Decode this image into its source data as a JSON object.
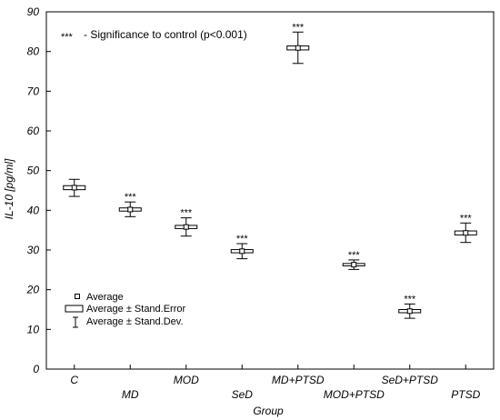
{
  "chart_data": {
    "type": "box",
    "xlabel": "Group",
    "ylabel": "IL-10 [pg/ml]",
    "ylim": [
      0,
      90
    ],
    "yticks": [
      0,
      10,
      20,
      30,
      40,
      50,
      60,
      70,
      80,
      90
    ],
    "grid": false,
    "categories": [
      "C",
      "MD",
      "MOD",
      "SeD",
      "MD+PTSD",
      "MOD+PTSD",
      "SeD+PTSD",
      "PTSD"
    ],
    "mean": [
      45.7,
      40.2,
      35.8,
      29.7,
      80.9,
      26.3,
      14.6,
      34.3
    ],
    "se_low": [
      45.2,
      39.8,
      35.4,
      29.3,
      80.4,
      26.0,
      14.2,
      33.8
    ],
    "se_high": [
      46.2,
      40.6,
      36.2,
      30.1,
      81.4,
      26.6,
      15.0,
      34.8
    ],
    "sd_low": [
      43.5,
      38.4,
      33.5,
      27.8,
      77.0,
      25.1,
      12.8,
      31.9
    ],
    "sd_high": [
      47.8,
      42.1,
      38.1,
      31.6,
      84.9,
      27.5,
      16.4,
      36.8
    ],
    "significant": [
      false,
      true,
      true,
      true,
      true,
      true,
      true,
      true
    ],
    "significance_marker": "***",
    "annotation": "- Significance to control (p<0.001)",
    "legend": {
      "placement": "bottom-left",
      "items": [
        "Average",
        "Average ± Stand.Error",
        "Average ± Stand.Dev."
      ]
    }
  }
}
